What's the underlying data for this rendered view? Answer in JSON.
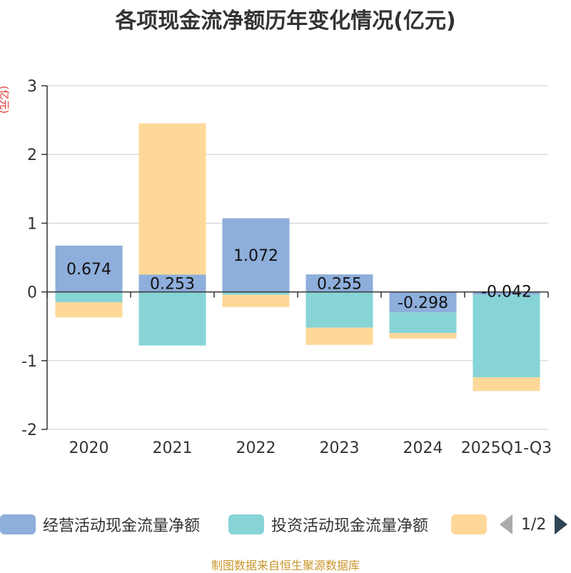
{
  "chart_data": {
    "type": "bar",
    "stacked": true,
    "title": "各项现金流净额历年变化情况(亿元)",
    "ylabel": "(亿元)",
    "ylim": [
      -2,
      3
    ],
    "yticks": [
      3,
      2,
      1,
      0,
      -1,
      -2
    ],
    "ytick_labels": [
      "3",
      "2",
      "1",
      "0",
      "-1",
      "-2"
    ],
    "categories": [
      "2020",
      "2021",
      "2022",
      "2023",
      "2024",
      "2025Q1-Q3"
    ],
    "series": [
      {
        "name": "经营活动现金流量净额",
        "color": "#8eaedb",
        "values": [
          0.674,
          0.253,
          1.072,
          0.255,
          -0.298,
          -0.042
        ],
        "labels": [
          "0.674",
          "0.253",
          "1.072",
          "0.255",
          "-0.298",
          "-0.042"
        ]
      },
      {
        "name": "投资活动现金流量净额",
        "color": "#87d4d6",
        "values": [
          -0.15,
          -0.78,
          -0.04,
          -0.52,
          -0.3,
          -1.2
        ]
      },
      {
        "name": "",
        "color": "#fdd898",
        "values": [
          -0.22,
          2.2,
          -0.18,
          -0.25,
          -0.08,
          -0.2
        ]
      }
    ]
  },
  "legend": {
    "items": [
      {
        "label": "经营活动现金流量净额",
        "color": "#8eaedb"
      },
      {
        "label": "投资活动现金流量净额",
        "color": "#87d4d6"
      },
      {
        "label": "",
        "color": "#fdd898"
      }
    ],
    "page": "1/2"
  },
  "source": "制图数据来自恒生聚源数据库"
}
